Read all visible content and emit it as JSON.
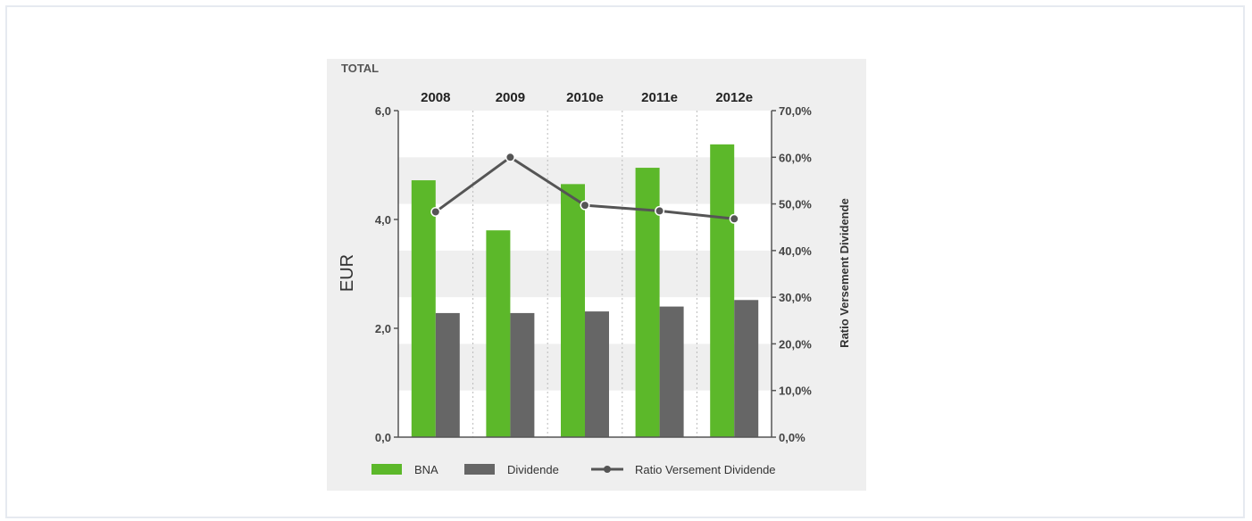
{
  "chart_data": {
    "type": "bar",
    "title": "TOTAL",
    "categories": [
      "2008",
      "2009",
      "2010e",
      "2011e",
      "2012e"
    ],
    "ylabel": "EUR",
    "y2label": "Ratio Versement Dividende",
    "ylim": [
      0,
      6
    ],
    "y2lim": [
      0,
      70
    ],
    "yticks": [
      "0,0",
      "2,0",
      "4,0",
      "6,0"
    ],
    "y2ticks": [
      "0,0%",
      "10,0%",
      "20,0%",
      "30,0%",
      "40,0%",
      "50,0%",
      "60,0%",
      "70,0%"
    ],
    "series": [
      {
        "name": "BNA",
        "type": "bar",
        "axis": "left",
        "color": "#5cb82a",
        "values": [
          4.72,
          3.8,
          4.65,
          4.95,
          5.38
        ]
      },
      {
        "name": "Dividende",
        "type": "bar",
        "axis": "left",
        "color": "#666666",
        "values": [
          2.28,
          2.28,
          2.31,
          2.4,
          2.52
        ]
      },
      {
        "name": "Ratio Versement Dividende",
        "type": "line",
        "axis": "right",
        "color": "#555555",
        "values": [
          48.3,
          60.0,
          49.7,
          48.5,
          46.8
        ]
      }
    ],
    "legend_position": "bottom",
    "grid": true
  }
}
